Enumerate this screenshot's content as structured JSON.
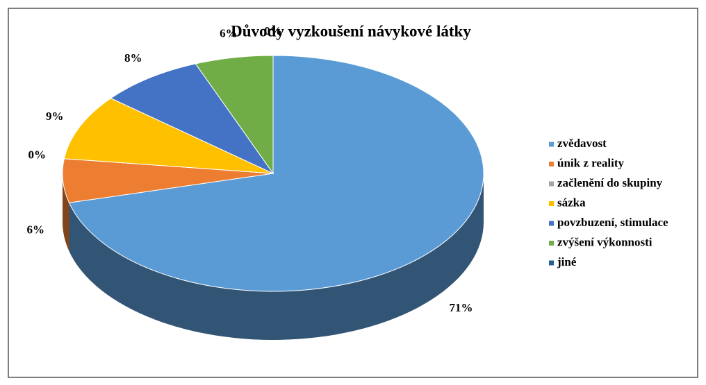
{
  "chart_data": {
    "type": "pie3d",
    "title": "Důvody vyzkoušení návykové látky",
    "categories": [
      "zvědavost",
      "únik z reality",
      "začlenění do skupiny",
      "sázka",
      "povzbuzení, stimulace",
      "zvýšení výkonnosti",
      "jiné"
    ],
    "values": [
      71,
      6,
      0,
      9,
      8,
      6,
      0
    ],
    "value_labels": [
      "71%",
      "6%",
      "0%",
      "9%",
      "8%",
      "6%",
      "0%"
    ],
    "colors": [
      "#5b9bd5",
      "#ed7d31",
      "#a5a5a5",
      "#ffc000",
      "#4472c4",
      "#70ad47",
      "#255e91"
    ],
    "legend": "right"
  }
}
